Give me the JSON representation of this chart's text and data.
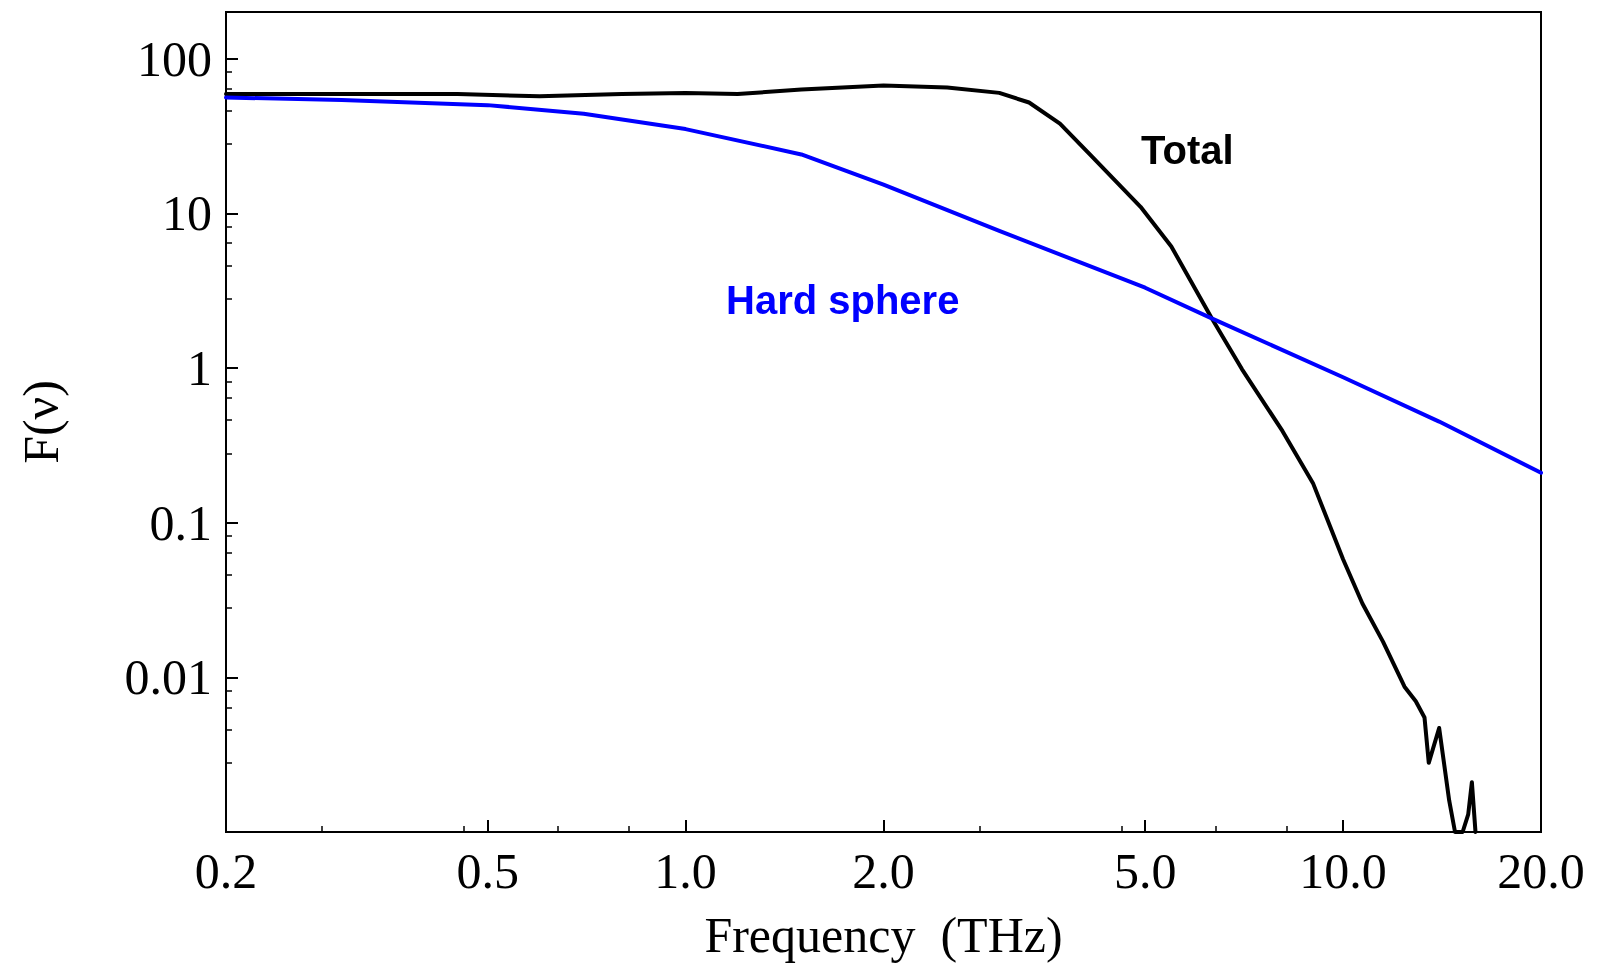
{
  "chart_data": {
    "type": "line",
    "xlabel": "Frequency  (THz)",
    "ylabel": "F(ν)",
    "log": "xy",
    "xlim": [
      0.2,
      20
    ],
    "xticks": [
      {
        "value": 0.2,
        "label": "0.2"
      },
      {
        "value": 0.5,
        "label": "0.5"
      },
      {
        "value": 1,
        "label": "1.0"
      },
      {
        "value": 2,
        "label": "2.0"
      },
      {
        "value": 5,
        "label": "5.0"
      },
      {
        "value": 10,
        "label": "10.0"
      },
      {
        "value": 20,
        "label": "20.0"
      }
    ],
    "ylim": [
      0.001,
      200
    ],
    "yticks": [
      {
        "value": 0.001,
        "label": null
      },
      0.01,
      0.1,
      1,
      10,
      100
    ],
    "grid": false,
    "legend": false,
    "marker": "none",
    "line_style": "solid",
    "series": [
      {
        "name": "Total",
        "color": "#000000",
        "x": [
          0.2,
          0.3,
          0.45,
          0.6,
          0.8,
          1.0,
          1.2,
          1.5,
          2.0,
          2.5,
          3.0,
          3.33,
          3.71,
          4.12,
          4.92,
          5.48,
          6.31,
          7.02,
          8.09,
          9.0,
          10.0,
          10.7,
          11.5,
          12.4,
          12.9,
          13.3,
          13.5,
          14.0,
          14.5,
          14.8,
          15.2,
          15.5,
          15.7,
          15.9
        ],
        "values": [
          59,
          59,
          59,
          57,
          59,
          60,
          59,
          63,
          67,
          65,
          60,
          52,
          38,
          24,
          11,
          6.1,
          2.1,
          0.98,
          0.39,
          0.18,
          0.058,
          0.03,
          0.017,
          0.0087,
          0.007,
          0.0055,
          0.0028,
          0.0047,
          0.0016,
          0.001,
          0.001,
          0.0013,
          0.0021,
          0.001
        ]
      },
      {
        "name": "Hard sphere",
        "color": "#0000ff",
        "x": [
          0.2,
          0.3,
          0.5,
          0.7,
          1.0,
          1.5,
          2.0,
          3.0,
          5.0,
          6.3,
          10.0,
          14.0,
          20.0
        ],
        "values": [
          56,
          54,
          50,
          44,
          35,
          24,
          15.3,
          7.7,
          3.3,
          2.1,
          0.87,
          0.45,
          0.21
        ]
      }
    ]
  }
}
